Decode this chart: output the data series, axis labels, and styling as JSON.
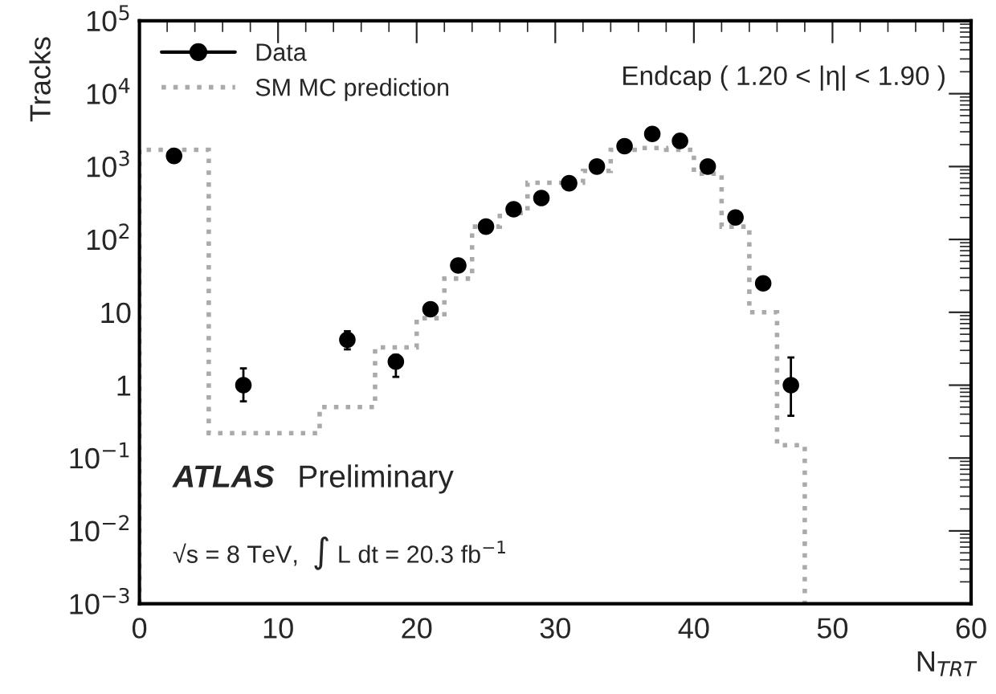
{
  "chart_data": {
    "type": "scatter",
    "xlabel": "N$_{TRT}$",
    "ylabel": "Tracks",
    "log": "y",
    "grid": false,
    "legend": "top left",
    "xlim": [
      0,
      60
    ],
    "xticks": [
      0,
      10,
      20,
      30,
      40,
      50,
      60
    ],
    "ylim": [
      0.001,
      100000
    ],
    "yticks": [
      {
        "value": 0.001,
        "label": "10$^{−3}$"
      },
      {
        "value": 0.01,
        "label": "10$^{−2}$"
      },
      {
        "value": 0.1,
        "label": "10$^{−1}$"
      },
      1,
      10,
      {
        "value": 100,
        "label": "10$^{2}$"
      },
      {
        "value": 1000,
        "label": "10$^{3}$"
      },
      {
        "value": 10000,
        "label": "10$^{4}$"
      },
      {
        "value": 100000,
        "label": "10$^{5}$"
      }
    ],
    "series": [
      {
        "name": "Data",
        "marker": "circle",
        "color": "#000000",
        "x": [
          2.5,
          7.5,
          15,
          18.5,
          21,
          23,
          25,
          27,
          29,
          31,
          33,
          35,
          37,
          39,
          41,
          43,
          45,
          47
        ],
        "values": [
          1400,
          1.0,
          4.2,
          2.1,
          11,
          44,
          150,
          260,
          370,
          590,
          1000,
          1900,
          2800,
          2250,
          1000,
          200,
          25,
          1.0
        ],
        "errors": [
          null,
          [
            0.6,
            1.7
          ],
          [
            3.1,
            5.5
          ],
          [
            1.3,
            2.6
          ],
          null,
          null,
          null,
          null,
          null,
          null,
          null,
          null,
          null,
          null,
          null,
          null,
          null,
          [
            0.38,
            2.4
          ]
        ]
      },
      {
        "name": "SM MC prediction",
        "type": "histogram",
        "color": "#aaaaaa",
        "line_style": "dotted",
        "bins": [
          0,
          5,
          10,
          13,
          17,
          20,
          22,
          24,
          26,
          28,
          30,
          32,
          34,
          36,
          38,
          40,
          42,
          44,
          46,
          48
        ],
        "values": [
          1700,
          0.22,
          0.22,
          0.5,
          3.3,
          8.3,
          29,
          150,
          230,
          600,
          600,
          870,
          1700,
          1800,
          1700,
          800,
          150,
          10,
          0.15
        ]
      }
    ],
    "annotations": [
      "Endcap ( 1.20 < |η| < 1.90 )",
      "ATLAS",
      "Preliminary",
      "√s = 8 TeV,  ∫ L dt = 20.3 fb$^{−1}$"
    ]
  }
}
